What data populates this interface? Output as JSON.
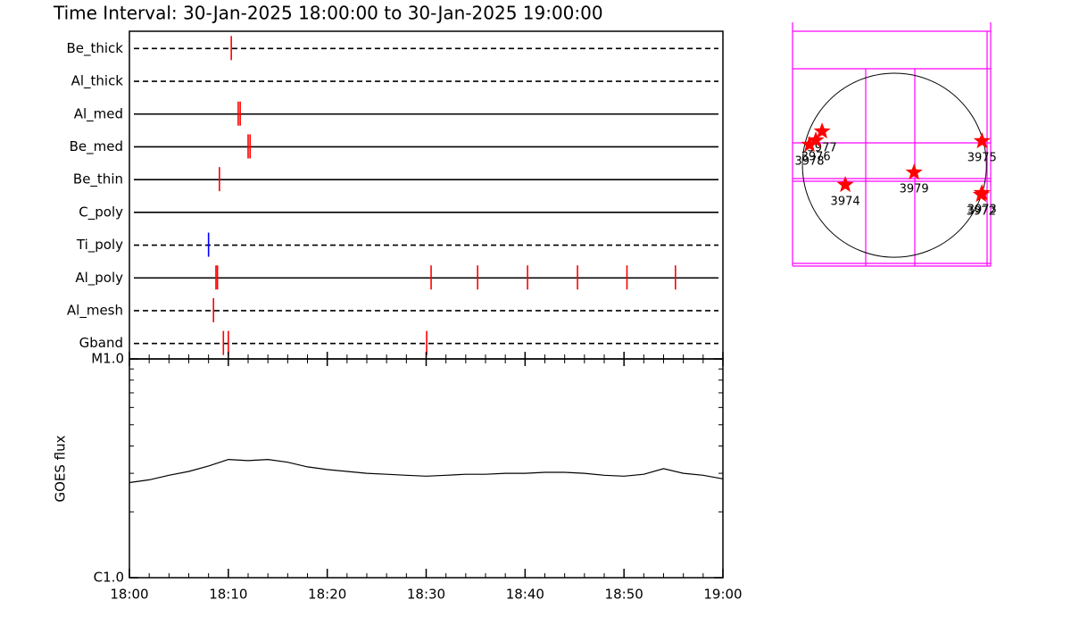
{
  "chart_data": [
    {
      "type": "timeline",
      "title": "Time Interval: 30-Jan-2025 18:00:00 to 30-Jan-2025 19:00:00",
      "xlim": [
        0,
        60
      ],
      "rows": [
        {
          "label": "Be_thick",
          "style": "dashed",
          "color": "#ff0000",
          "events": [
            10.3
          ]
        },
        {
          "label": "Al_thick",
          "style": "dashed",
          "color": "#ff0000",
          "events": []
        },
        {
          "label": "Al_med",
          "style": "solid",
          "color": "#ff0000",
          "events": [
            11.0,
            11.2
          ]
        },
        {
          "label": "Be_med",
          "style": "solid",
          "color": "#ff0000",
          "events": [
            12.0,
            12.2
          ]
        },
        {
          "label": "Be_thin",
          "style": "solid",
          "color": "#ff0000",
          "events": [
            9.1
          ]
        },
        {
          "label": "C_poly",
          "style": "solid",
          "color": "#ff0000",
          "events": []
        },
        {
          "label": "Ti_poly",
          "style": "dashed",
          "color": "#0000ff",
          "events": [
            8.0
          ]
        },
        {
          "label": "Al_poly",
          "style": "solid",
          "color": "#ff0000",
          "events": [
            8.75,
            8.9,
            30.5,
            35.2,
            40.25,
            45.3,
            50.3,
            55.2
          ]
        },
        {
          "label": "Al_mesh",
          "style": "dashed",
          "color": "#ff0000",
          "events": [
            8.5
          ]
        },
        {
          "label": "Gband",
          "style": "dashed",
          "color": "#ff0000",
          "events": [
            9.5,
            10.0,
            30.05
          ]
        }
      ]
    },
    {
      "type": "line",
      "ylabel": "GOES flux",
      "log_y": true,
      "color": "#000000",
      "xlim": [
        0,
        60
      ],
      "xticks": [
        {
          "value": 0,
          "label": "18:00"
        },
        {
          "value": 10,
          "label": "18:10"
        },
        {
          "value": 20,
          "label": "18:20"
        },
        {
          "value": 30,
          "label": "18:30"
        },
        {
          "value": 40,
          "label": "18:40"
        },
        {
          "value": 50,
          "label": "18:50"
        },
        {
          "value": 60,
          "label": "19:00"
        }
      ],
      "ylim": [
        1e-06,
        1e-05
      ],
      "yticks": [
        {
          "value": 1e-06,
          "label": "C1.0"
        },
        {
          "value": 1e-05,
          "label": "M1.0"
        }
      ],
      "x": [
        0,
        2,
        4,
        6,
        8,
        10,
        12,
        14,
        16,
        18,
        20,
        22,
        24,
        26,
        28,
        30,
        32,
        34,
        36,
        38,
        40,
        42,
        44,
        46,
        48,
        50,
        52,
        54,
        56,
        58,
        60
      ],
      "values": [
        2.72e-06,
        2.8e-06,
        2.94e-06,
        3.06e-06,
        3.24e-06,
        3.47e-06,
        3.43e-06,
        3.47e-06,
        3.37e-06,
        3.21e-06,
        3.12e-06,
        3.06e-06,
        3e-06,
        2.97e-06,
        2.94e-06,
        2.91e-06,
        2.94e-06,
        2.97e-06,
        2.97e-06,
        3e-06,
        3e-06,
        3.03e-06,
        3.03e-06,
        3e-06,
        2.94e-06,
        2.91e-06,
        2.97e-06,
        3.15e-06,
        3e-06,
        2.94e-06,
        2.83e-06
      ]
    },
    {
      "type": "scatter",
      "color": "#ff0000",
      "xlim": [
        -1080,
        1020
      ],
      "ylim": [
        -1070,
        1450
      ],
      "radius": 975,
      "labels": [
        "3977",
        "3976",
        "3978",
        "3975",
        "3979",
        "3974",
        "3973",
        "3972"
      ],
      "x": [
        -767,
        -833,
        -900,
        928,
        208,
        -521,
        928,
        919
      ],
      "y": [
        360,
        265,
        218,
        256,
        -76,
        -208,
        -294,
        -313
      ]
    }
  ]
}
